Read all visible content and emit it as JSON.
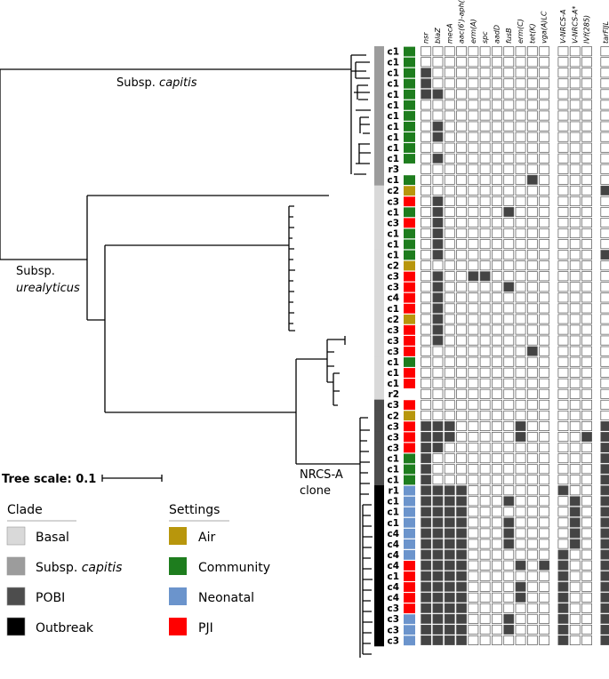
{
  "labels": {
    "capitis_prefix": "Subsp. ",
    "capitis_italic": "capitis",
    "urealyticus_prefix": "Subsp.",
    "urealyticus_italic": "urealyticus",
    "nrcs_line1": "NRCS-A",
    "nrcs_line2": "clone",
    "tree_scale": "Tree scale: 0.1"
  },
  "legend": {
    "clade_title": "Clade",
    "settings_title": "Settings",
    "clades": [
      {
        "label": "Basal",
        "color": "#d9d9d9"
      },
      {
        "label": "Subsp. ",
        "italic": "capitis",
        "color": "#9c9c9c"
      },
      {
        "label": "POBI",
        "color": "#4d4d4d"
      },
      {
        "label": "Outbreak",
        "color": "#000000"
      }
    ],
    "settings": [
      {
        "label": "Air",
        "color": "#b8960c"
      },
      {
        "label": "Community",
        "color": "#1e7d1e"
      },
      {
        "label": "Neonatal",
        "color": "#6b94cc"
      },
      {
        "label": "PJI",
        "color": "#ff0000"
      }
    ]
  },
  "columns": [
    "nsr",
    "blaZ",
    "mecA",
    "aac(6')-aph(2'')",
    "erm(A)",
    "spc",
    "aadD",
    "fusB",
    "erm(C)",
    "tet(K)",
    "vga(A)LC",
    "V-NRCS-A",
    "V-NRCS-A*",
    "IVf(285)",
    "tarFIJL"
  ],
  "rows": [
    {
      "label": "c1",
      "setting": "Community",
      "clade": "Subsp. capitis",
      "cells": [
        0,
        0,
        0,
        0,
        0,
        0,
        0,
        0,
        0,
        0,
        0,
        0,
        0,
        0,
        0
      ]
    },
    {
      "label": "c1",
      "setting": "Community",
      "clade": "Subsp. capitis",
      "cells": [
        0,
        0,
        0,
        0,
        0,
        0,
        0,
        0,
        0,
        0,
        0,
        0,
        0,
        0,
        0
      ]
    },
    {
      "label": "c1",
      "setting": "Community",
      "clade": "Subsp. capitis",
      "cells": [
        1,
        0,
        0,
        0,
        0,
        0,
        0,
        0,
        0,
        0,
        0,
        0,
        0,
        0,
        0
      ]
    },
    {
      "label": "c1",
      "setting": "Community",
      "clade": "Subsp. capitis",
      "cells": [
        1,
        0,
        0,
        0,
        0,
        0,
        0,
        0,
        0,
        0,
        0,
        0,
        0,
        0,
        0
      ]
    },
    {
      "label": "c1",
      "setting": "Community",
      "clade": "Subsp. capitis",
      "cells": [
        1,
        1,
        0,
        0,
        0,
        0,
        0,
        0,
        0,
        0,
        0,
        0,
        0,
        0,
        0
      ]
    },
    {
      "label": "c1",
      "setting": "Community",
      "clade": "Subsp. capitis",
      "cells": [
        0,
        0,
        0,
        0,
        0,
        0,
        0,
        0,
        0,
        0,
        0,
        0,
        0,
        0,
        0
      ]
    },
    {
      "label": "c1",
      "setting": "Community",
      "clade": "Subsp. capitis",
      "cells": [
        0,
        0,
        0,
        0,
        0,
        0,
        0,
        0,
        0,
        0,
        0,
        0,
        0,
        0,
        0
      ]
    },
    {
      "label": "c1",
      "setting": "Community",
      "clade": "Subsp. capitis",
      "cells": [
        0,
        1,
        0,
        0,
        0,
        0,
        0,
        0,
        0,
        0,
        0,
        0,
        0,
        0,
        0
      ]
    },
    {
      "label": "c1",
      "setting": "Community",
      "clade": "Subsp. capitis",
      "cells": [
        0,
        1,
        0,
        0,
        0,
        0,
        0,
        0,
        0,
        0,
        0,
        0,
        0,
        0,
        0
      ]
    },
    {
      "label": "c1",
      "setting": "Community",
      "clade": "Subsp. capitis",
      "cells": [
        0,
        0,
        0,
        0,
        0,
        0,
        0,
        0,
        0,
        0,
        0,
        0,
        0,
        0,
        0
      ]
    },
    {
      "label": "c1",
      "setting": "Community",
      "clade": "Subsp. capitis",
      "cells": [
        0,
        1,
        0,
        0,
        0,
        0,
        0,
        0,
        0,
        0,
        0,
        0,
        0,
        0,
        0
      ]
    },
    {
      "label": "r3",
      "setting": "",
      "clade": "Subsp. capitis",
      "cells": [
        0,
        0,
        0,
        0,
        0,
        0,
        0,
        0,
        0,
        0,
        0,
        0,
        0,
        0,
        0
      ]
    },
    {
      "label": "c1",
      "setting": "Community",
      "clade": "Subsp. capitis",
      "cells": [
        0,
        0,
        0,
        0,
        0,
        0,
        0,
        0,
        0,
        1,
        0,
        0,
        0,
        0,
        0
      ]
    },
    {
      "label": "c2",
      "setting": "Air",
      "clade": "Basal",
      "cells": [
        0,
        0,
        0,
        0,
        0,
        0,
        0,
        0,
        0,
        0,
        0,
        0,
        0,
        0,
        1
      ]
    },
    {
      "label": "c3",
      "setting": "PJI",
      "clade": "Basal",
      "cells": [
        0,
        1,
        0,
        0,
        0,
        0,
        0,
        0,
        0,
        0,
        0,
        0,
        0,
        0,
        0
      ]
    },
    {
      "label": "c1",
      "setting": "Community",
      "clade": "Basal",
      "cells": [
        0,
        1,
        0,
        0,
        0,
        0,
        0,
        1,
        0,
        0,
        0,
        0,
        0,
        0,
        0
      ]
    },
    {
      "label": "c3",
      "setting": "PJI",
      "clade": "Basal",
      "cells": [
        0,
        1,
        0,
        0,
        0,
        0,
        0,
        0,
        0,
        0,
        0,
        0,
        0,
        0,
        0
      ]
    },
    {
      "label": "c1",
      "setting": "Community",
      "clade": "Basal",
      "cells": [
        0,
        1,
        0,
        0,
        0,
        0,
        0,
        0,
        0,
        0,
        0,
        0,
        0,
        0,
        0
      ]
    },
    {
      "label": "c1",
      "setting": "Community",
      "clade": "Basal",
      "cells": [
        0,
        1,
        0,
        0,
        0,
        0,
        0,
        0,
        0,
        0,
        0,
        0,
        0,
        0,
        0
      ]
    },
    {
      "label": "c1",
      "setting": "Community",
      "clade": "Basal",
      "cells": [
        0,
        1,
        0,
        0,
        0,
        0,
        0,
        0,
        0,
        0,
        0,
        0,
        0,
        0,
        1
      ]
    },
    {
      "label": "c2",
      "setting": "Air",
      "clade": "Basal",
      "cells": [
        0,
        0,
        0,
        0,
        0,
        0,
        0,
        0,
        0,
        0,
        0,
        0,
        0,
        0,
        0
      ]
    },
    {
      "label": "c3",
      "setting": "PJI",
      "clade": "Basal",
      "cells": [
        0,
        1,
        0,
        0,
        1,
        1,
        0,
        0,
        0,
        0,
        0,
        0,
        0,
        0,
        0
      ]
    },
    {
      "label": "c3",
      "setting": "PJI",
      "clade": "Basal",
      "cells": [
        0,
        1,
        0,
        0,
        0,
        0,
        0,
        1,
        0,
        0,
        0,
        0,
        0,
        0,
        0
      ]
    },
    {
      "label": "c4",
      "setting": "PJI",
      "clade": "Basal",
      "cells": [
        0,
        1,
        0,
        0,
        0,
        0,
        0,
        0,
        0,
        0,
        0,
        0,
        0,
        0,
        0
      ]
    },
    {
      "label": "c1",
      "setting": "PJI",
      "clade": "Basal",
      "cells": [
        0,
        1,
        0,
        0,
        0,
        0,
        0,
        0,
        0,
        0,
        0,
        0,
        0,
        0,
        0
      ]
    },
    {
      "label": "c2",
      "setting": "Air",
      "clade": "Basal",
      "cells": [
        0,
        1,
        0,
        0,
        0,
        0,
        0,
        0,
        0,
        0,
        0,
        0,
        0,
        0,
        0
      ]
    },
    {
      "label": "c3",
      "setting": "PJI",
      "clade": "Basal",
      "cells": [
        0,
        1,
        0,
        0,
        0,
        0,
        0,
        0,
        0,
        0,
        0,
        0,
        0,
        0,
        0
      ]
    },
    {
      "label": "c3",
      "setting": "PJI",
      "clade": "Basal",
      "cells": [
        0,
        1,
        0,
        0,
        0,
        0,
        0,
        0,
        0,
        0,
        0,
        0,
        0,
        0,
        0
      ]
    },
    {
      "label": "c3",
      "setting": "PJI",
      "clade": "Basal",
      "cells": [
        0,
        0,
        0,
        0,
        0,
        0,
        0,
        0,
        0,
        1,
        0,
        0,
        0,
        0,
        0
      ]
    },
    {
      "label": "c1",
      "setting": "Community",
      "clade": "Basal",
      "cells": [
        0,
        0,
        0,
        0,
        0,
        0,
        0,
        0,
        0,
        0,
        0,
        0,
        0,
        0,
        0
      ]
    },
    {
      "label": "c1",
      "setting": "PJI",
      "clade": "Basal",
      "cells": [
        0,
        0,
        0,
        0,
        0,
        0,
        0,
        0,
        0,
        0,
        0,
        0,
        0,
        0,
        0
      ]
    },
    {
      "label": "c1",
      "setting": "PJI",
      "clade": "Basal",
      "cells": [
        0,
        0,
        0,
        0,
        0,
        0,
        0,
        0,
        0,
        0,
        0,
        0,
        0,
        0,
        0
      ]
    },
    {
      "label": "r2",
      "setting": "",
      "clade": "Basal",
      "cells": [
        0,
        0,
        0,
        0,
        0,
        0,
        0,
        0,
        0,
        0,
        0,
        0,
        0,
        0,
        0
      ]
    },
    {
      "label": "c3",
      "setting": "PJI",
      "clade": "POBI",
      "cells": [
        0,
        0,
        0,
        0,
        0,
        0,
        0,
        0,
        0,
        0,
        0,
        0,
        0,
        0,
        0
      ]
    },
    {
      "label": "c2",
      "setting": "Air",
      "clade": "POBI",
      "cells": [
        0,
        0,
        0,
        0,
        0,
        0,
        0,
        0,
        0,
        0,
        0,
        0,
        0,
        0,
        0
      ]
    },
    {
      "label": "c3",
      "setting": "PJI",
      "clade": "POBI",
      "cells": [
        1,
        1,
        1,
        0,
        0,
        0,
        0,
        0,
        1,
        0,
        0,
        0,
        0,
        0,
        1
      ]
    },
    {
      "label": "c3",
      "setting": "PJI",
      "clade": "POBI",
      "cells": [
        1,
        1,
        1,
        0,
        0,
        0,
        0,
        0,
        1,
        0,
        0,
        0,
        0,
        1,
        1
      ]
    },
    {
      "label": "c3",
      "setting": "PJI",
      "clade": "POBI",
      "cells": [
        1,
        1,
        0,
        0,
        0,
        0,
        0,
        0,
        0,
        0,
        0,
        0,
        0,
        0,
        1
      ]
    },
    {
      "label": "c1",
      "setting": "Community",
      "clade": "POBI",
      "cells": [
        1,
        0,
        0,
        0,
        0,
        0,
        0,
        0,
        0,
        0,
        0,
        0,
        0,
        0,
        1
      ]
    },
    {
      "label": "c1",
      "setting": "Community",
      "clade": "POBI",
      "cells": [
        1,
        0,
        0,
        0,
        0,
        0,
        0,
        0,
        0,
        0,
        0,
        0,
        0,
        0,
        1
      ]
    },
    {
      "label": "c1",
      "setting": "Community",
      "clade": "POBI",
      "cells": [
        1,
        0,
        0,
        0,
        0,
        0,
        0,
        0,
        0,
        0,
        0,
        0,
        0,
        0,
        1
      ]
    },
    {
      "label": "r1",
      "setting": "Neonatal",
      "clade": "Outbreak",
      "cells": [
        1,
        1,
        1,
        1,
        0,
        0,
        0,
        0,
        0,
        0,
        0,
        1,
        0,
        0,
        1
      ]
    },
    {
      "label": "c1",
      "setting": "Neonatal",
      "clade": "Outbreak",
      "cells": [
        1,
        1,
        1,
        1,
        0,
        0,
        0,
        1,
        0,
        0,
        0,
        0,
        1,
        0,
        1
      ]
    },
    {
      "label": "c1",
      "setting": "Neonatal",
      "clade": "Outbreak",
      "cells": [
        1,
        1,
        1,
        1,
        0,
        0,
        0,
        0,
        0,
        0,
        0,
        0,
        1,
        0,
        1
      ]
    },
    {
      "label": "c1",
      "setting": "Neonatal",
      "clade": "Outbreak",
      "cells": [
        1,
        1,
        1,
        1,
        0,
        0,
        0,
        1,
        0,
        0,
        0,
        0,
        1,
        0,
        1
      ]
    },
    {
      "label": "c4",
      "setting": "Neonatal",
      "clade": "Outbreak",
      "cells": [
        1,
        1,
        1,
        1,
        0,
        0,
        0,
        1,
        0,
        0,
        0,
        0,
        1,
        0,
        1
      ]
    },
    {
      "label": "c4",
      "setting": "Neonatal",
      "clade": "Outbreak",
      "cells": [
        1,
        1,
        1,
        1,
        0,
        0,
        0,
        1,
        0,
        0,
        0,
        0,
        1,
        0,
        1
      ]
    },
    {
      "label": "c4",
      "setting": "Neonatal",
      "clade": "Outbreak",
      "cells": [
        1,
        1,
        1,
        1,
        0,
        0,
        0,
        0,
        0,
        0,
        0,
        1,
        0,
        0,
        1
      ]
    },
    {
      "label": "c4",
      "setting": "PJI",
      "clade": "Outbreak",
      "cells": [
        1,
        1,
        1,
        1,
        0,
        0,
        0,
        0,
        1,
        0,
        1,
        1,
        0,
        0,
        1
      ]
    },
    {
      "label": "c1",
      "setting": "PJI",
      "clade": "Outbreak",
      "cells": [
        1,
        1,
        1,
        1,
        0,
        0,
        0,
        0,
        0,
        0,
        0,
        1,
        0,
        0,
        1
      ]
    },
    {
      "label": "c4",
      "setting": "PJI",
      "clade": "Outbreak",
      "cells": [
        1,
        1,
        1,
        1,
        0,
        0,
        0,
        0,
        1,
        0,
        0,
        1,
        0,
        0,
        1
      ]
    },
    {
      "label": "c4",
      "setting": "PJI",
      "clade": "Outbreak",
      "cells": [
        1,
        1,
        1,
        1,
        0,
        0,
        0,
        0,
        1,
        0,
        0,
        1,
        0,
        0,
        1
      ]
    },
    {
      "label": "c3",
      "setting": "PJI",
      "clade": "Outbreak",
      "cells": [
        1,
        1,
        1,
        1,
        0,
        0,
        0,
        0,
        0,
        0,
        0,
        1,
        0,
        0,
        1
      ]
    },
    {
      "label": "c3",
      "setting": "Neonatal",
      "clade": "Outbreak",
      "cells": [
        1,
        1,
        1,
        1,
        0,
        0,
        0,
        1,
        0,
        0,
        0,
        1,
        0,
        0,
        1
      ]
    },
    {
      "label": "c3",
      "setting": "Neonatal",
      "clade": "Outbreak",
      "cells": [
        1,
        1,
        1,
        1,
        0,
        0,
        0,
        1,
        0,
        0,
        0,
        1,
        0,
        0,
        1
      ]
    },
    {
      "label": "c3",
      "setting": "Neonatal",
      "clade": "Outbreak",
      "cells": [
        1,
        1,
        1,
        1,
        0,
        0,
        0,
        0,
        0,
        0,
        0,
        1,
        0,
        0,
        1
      ]
    }
  ]
}
